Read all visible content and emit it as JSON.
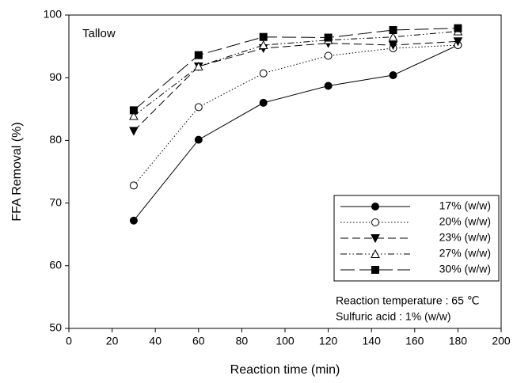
{
  "chart_data": {
    "type": "line",
    "xlabel": "Reaction time (min)",
    "ylabel": "FFA Removal (%)",
    "annotations": [
      "Tallow",
      "Reaction temperature : 65 ℃",
      "Sulfuric acid : 1% (w/w)"
    ],
    "x": [
      30,
      60,
      90,
      120,
      150,
      180
    ],
    "series": [
      {
        "name": "17% (w/w)",
        "color": "#000000",
        "marker": "filled-circle",
        "linestyle": "solid",
        "values": [
          67.2,
          80.1,
          86.0,
          88.7,
          90.4,
          95.2
        ]
      },
      {
        "name": "20% (w/w)",
        "color": "#000000",
        "marker": "open-circle",
        "linestyle": "dotted",
        "values": [
          72.8,
          85.3,
          90.7,
          93.5,
          94.7,
          95.2
        ]
      },
      {
        "name": "23% (w/w)",
        "color": "#000000",
        "marker": "filled-triangle-down",
        "linestyle": "dashed",
        "values": [
          81.5,
          91.8,
          94.7,
          95.5,
          95.2,
          95.8
        ]
      },
      {
        "name": "27% (w/w)",
        "color": "#000000",
        "marker": "open-triangle-up",
        "linestyle": "dash-dot-dot",
        "values": [
          83.9,
          91.8,
          95.2,
          96.0,
          96.5,
          97.4
        ]
      },
      {
        "name": "30% (w/w)",
        "color": "#000000",
        "marker": "filled-square",
        "linestyle": "long-dash",
        "values": [
          84.8,
          93.6,
          96.5,
          96.4,
          97.6,
          97.9
        ]
      }
    ],
    "xlim": [
      0,
      200
    ],
    "xticks": [
      0,
      20,
      40,
      60,
      80,
      100,
      120,
      140,
      160,
      180,
      200
    ],
    "ylim": [
      50,
      100
    ],
    "yticks": [
      50,
      60,
      70,
      80,
      90,
      100
    ],
    "legend": "lower right"
  }
}
